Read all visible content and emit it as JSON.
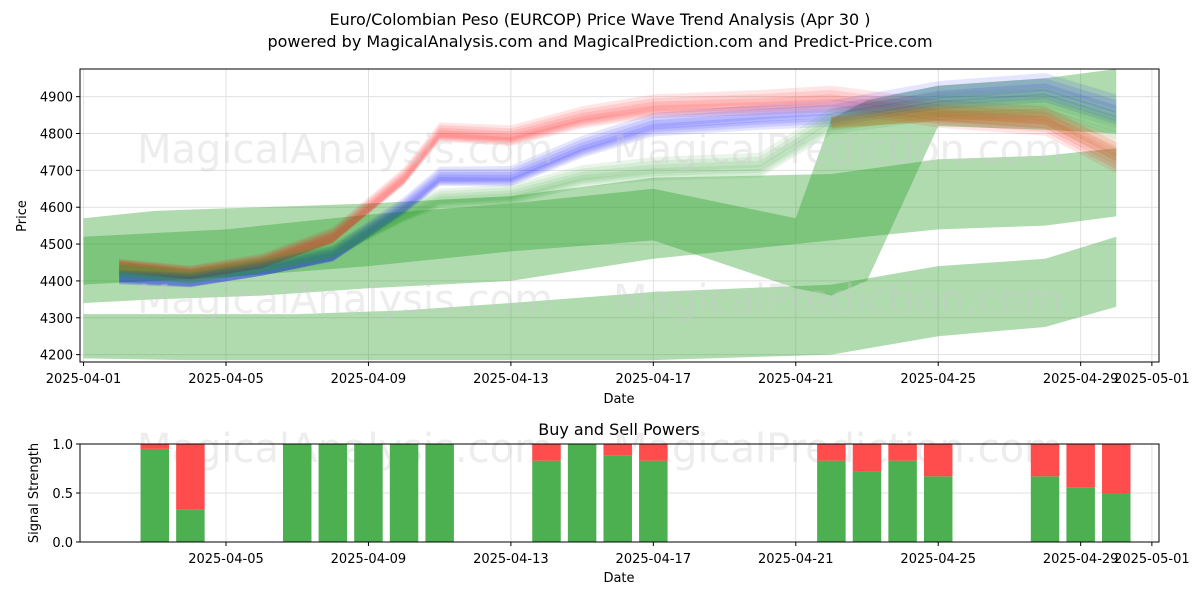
{
  "title_line1": "Euro/Colombian Peso (EURCOP) Price Wave Trend Analysis (Apr 30 )",
  "title_line2": "powered by MagicalAnalysis.com and MagicalPrediction.com and Predict-Price.com",
  "watermarks": [
    "MagicalAnalysis.com",
    "MagicalPrediction.com"
  ],
  "colors": {
    "green": "#2ca02c",
    "red": "#ff0000",
    "blue": "#0000ff",
    "buy": "#4caf50",
    "sell": "#ff4c4c",
    "grid": "#e0e0e0"
  },
  "chart_data": [
    {
      "type": "area",
      "name": "price_wave_trend",
      "xlabel": "Date",
      "ylabel": "Price",
      "xlim": [
        "2025-04-01",
        "2025-05-01"
      ],
      "ylim": [
        4180,
        4975
      ],
      "grid": true,
      "x_ticks": [
        "2025-04-01",
        "2025-04-05",
        "2025-04-09",
        "2025-04-13",
        "2025-04-17",
        "2025-04-21",
        "2025-04-25",
        "2025-04-29",
        "2025-05-01"
      ],
      "y_ticks": [
        4200,
        4300,
        4400,
        4500,
        4600,
        4700,
        4800,
        4900
      ],
      "green_bands": [
        {
          "x": [
            "2025-04-01",
            "2025-04-03",
            "2025-04-06",
            "2025-04-09",
            "2025-04-13",
            "2025-04-17",
            "2025-04-22",
            "2025-04-25",
            "2025-04-28",
            "2025-04-30"
          ],
          "lower": [
            4340,
            4350,
            4360,
            4380,
            4400,
            4460,
            4510,
            4540,
            4550,
            4575
          ],
          "upper": [
            4570,
            4590,
            4600,
            4610,
            4630,
            4680,
            4690,
            4730,
            4740,
            4760
          ]
        },
        {
          "x": [
            "2025-04-01",
            "2025-04-04",
            "2025-04-07",
            "2025-04-10",
            "2025-04-13",
            "2025-04-17",
            "2025-04-22",
            "2025-04-25",
            "2025-04-28",
            "2025-04-30"
          ],
          "lower": [
            4190,
            4185,
            4185,
            4185,
            4185,
            4185,
            4200,
            4250,
            4275,
            4330
          ],
          "upper": [
            4310,
            4310,
            4310,
            4320,
            4340,
            4370,
            4390,
            4440,
            4460,
            4520
          ]
        },
        {
          "x": [
            "2025-04-01",
            "2025-04-05",
            "2025-04-09",
            "2025-04-13",
            "2025-04-17",
            "2025-04-21",
            "2025-04-22",
            "2025-04-23",
            "2025-04-25",
            "2025-04-28",
            "2025-04-30"
          ],
          "lower": [
            4390,
            4410,
            4440,
            4480,
            4510,
            4380,
            4360,
            4400,
            4820,
            4810,
            4800
          ],
          "upper": [
            4520,
            4540,
            4580,
            4610,
            4650,
            4570,
            4840,
            4890,
            4930,
            4950,
            4975
          ]
        }
      ],
      "wave_bundles": [
        {
          "color": "red",
          "x": [
            "2025-04-02",
            "2025-04-04",
            "2025-04-06",
            "2025-04-08",
            "2025-04-10",
            "2025-04-11",
            "2025-04-13",
            "2025-04-15",
            "2025-04-17",
            "2025-04-20",
            "2025-04-22",
            "2025-04-25",
            "2025-04-28",
            "2025-04-30"
          ],
          "center": [
            4440,
            4420,
            4450,
            4520,
            4680,
            4800,
            4790,
            4840,
            4870,
            4880,
            4890,
            4850,
            4830,
            4730
          ]
        },
        {
          "color": "blue",
          "x": [
            "2025-04-02",
            "2025-04-04",
            "2025-04-06",
            "2025-04-08",
            "2025-04-10",
            "2025-04-11",
            "2025-04-13",
            "2025-04-15",
            "2025-04-17",
            "2025-04-20",
            "2025-04-22",
            "2025-04-25",
            "2025-04-28",
            "2025-04-30"
          ],
          "center": [
            4410,
            4400,
            4430,
            4470,
            4600,
            4680,
            4680,
            4760,
            4820,
            4840,
            4850,
            4900,
            4920,
            4860
          ]
        },
        {
          "color": "green",
          "x": [
            "2025-04-02",
            "2025-04-04",
            "2025-04-06",
            "2025-04-08",
            "2025-04-10",
            "2025-04-11",
            "2025-04-13",
            "2025-04-15",
            "2025-04-17",
            "2025-04-20",
            "2025-04-22",
            "2025-04-25",
            "2025-04-28",
            "2025-04-30"
          ],
          "center": [
            4430,
            4410,
            4440,
            4480,
            4580,
            4620,
            4630,
            4680,
            4700,
            4710,
            4830,
            4870,
            4880,
            4820
          ]
        },
        {
          "color": "orange",
          "x": [
            "2025-04-22",
            "2025-04-25",
            "2025-04-28",
            "2025-04-30"
          ],
          "center": [
            4830,
            4850,
            4840,
            4750
          ]
        }
      ]
    },
    {
      "type": "bar",
      "name": "buy_and_sell_powers",
      "title": "Buy and Sell Powers",
      "xlabel": "Date",
      "ylabel": "Signal Strength",
      "xlim": [
        "2025-04-01",
        "2025-05-01"
      ],
      "ylim": [
        0,
        1.0
      ],
      "y_ticks": [
        "0.0",
        "0.5",
        "1.0"
      ],
      "x_ticks": [
        "2025-04-05",
        "2025-04-09",
        "2025-04-13",
        "2025-04-17",
        "2025-04-21",
        "2025-04-25",
        "2025-04-29",
        "2025-05-01"
      ],
      "grid": true,
      "categories": [
        "2025-04-02",
        "2025-04-03",
        "2025-04-06",
        "2025-04-07",
        "2025-04-08",
        "2025-04-09",
        "2025-04-10",
        "2025-04-13",
        "2025-04-14",
        "2025-04-15",
        "2025-04-16",
        "2025-04-21",
        "2025-04-22",
        "2025-04-23",
        "2025-04-24",
        "2025-04-27",
        "2025-04-28",
        "2025-04-29"
      ],
      "series": [
        {
          "name": "buy",
          "values": [
            0.95,
            0.33,
            1.0,
            1.0,
            1.0,
            1.0,
            1.0,
            0.83,
            1.0,
            0.88,
            0.83,
            0.83,
            0.72,
            0.83,
            0.67,
            0.67,
            0.56,
            0.5
          ]
        },
        {
          "name": "sell",
          "values": [
            0.05,
            0.67,
            0.0,
            0.0,
            0.0,
            0.0,
            0.0,
            0.17,
            0.0,
            0.12,
            0.17,
            0.17,
            0.28,
            0.17,
            0.33,
            0.33,
            0.44,
            0.5
          ]
        }
      ]
    }
  ]
}
